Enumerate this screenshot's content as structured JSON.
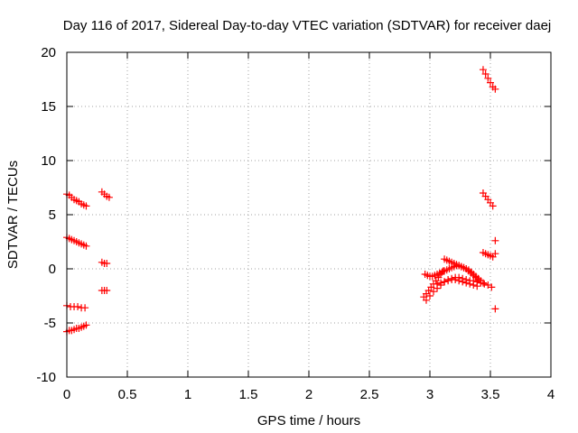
{
  "chart_data": {
    "type": "scatter",
    "title": "Day 116 of 2017, Sidereal Day-to-day VTEC variation (SDTVAR) for receiver daej",
    "xlabel": "GPS time / hours",
    "ylabel": "SDTVAR / TECUs",
    "xlim": [
      0,
      4
    ],
    "ylim": [
      -10,
      20
    ],
    "xticks": [
      0,
      0.5,
      1,
      1.5,
      2,
      2.5,
      3,
      3.5,
      4
    ],
    "xtick_labels": [
      "0",
      "0.5",
      "1",
      "1.5",
      "2",
      "2.5",
      "3",
      "3.5",
      "4"
    ],
    "yticks": [
      -10,
      -5,
      0,
      5,
      10,
      15,
      20
    ],
    "ytick_labels": [
      "-10",
      "-5",
      "0",
      "5",
      "10",
      "15",
      "20"
    ],
    "grid": true,
    "marker": "plus",
    "color": "#ff0000",
    "series": [
      {
        "x": [
          0.0,
          0.02,
          0.04,
          0.06,
          0.08,
          0.1,
          0.12,
          0.14,
          0.16,
          0.0,
          0.02,
          0.04,
          0.06,
          0.08,
          0.1,
          0.12,
          0.14,
          0.16,
          0.0,
          0.03,
          0.06,
          0.09,
          0.12,
          0.15,
          0.0,
          0.02,
          0.04,
          0.06,
          0.08,
          0.1,
          0.12,
          0.14,
          0.16,
          0.29,
          0.31,
          0.33,
          0.35,
          0.29,
          0.31,
          0.33,
          0.29,
          0.31,
          0.33,
          2.95,
          2.97,
          2.99,
          3.01,
          3.03,
          3.05,
          3.07,
          3.09,
          3.11,
          2.96,
          2.98,
          3.0,
          3.02,
          3.04,
          3.06,
          3.08,
          3.1,
          3.12,
          3.14,
          3.16,
          3.18,
          3.2,
          3.22,
          3.24,
          3.26,
          3.28,
          3.3,
          3.32,
          3.34,
          3.36,
          3.38,
          3.4,
          3.42,
          3.44,
          2.97,
          3.0,
          3.03,
          3.06,
          3.09,
          3.12,
          3.15,
          3.18,
          3.21,
          3.24,
          3.27,
          3.3,
          3.33,
          3.36,
          3.39,
          3.42,
          3.45,
          3.48,
          3.51,
          3.12,
          3.14,
          3.16,
          3.18,
          3.2,
          3.22,
          3.24,
          3.26,
          3.28,
          3.3,
          3.32,
          3.34,
          3.36,
          3.38,
          3.4,
          3.06,
          3.09,
          3.12,
          3.15,
          3.18,
          3.21,
          3.24,
          3.27,
          3.3,
          3.33,
          3.36,
          3.39,
          3.44,
          3.46,
          3.48,
          3.5,
          3.52,
          3.54,
          3.44,
          3.46,
          3.48,
          3.5,
          3.52,
          3.44,
          3.46,
          3.48,
          3.5,
          3.52,
          3.54,
          3.54,
          3.54
        ],
        "y": [
          6.9,
          6.8,
          6.6,
          6.4,
          6.3,
          6.2,
          6.0,
          5.9,
          5.8,
          2.9,
          2.8,
          2.7,
          2.6,
          2.5,
          2.4,
          2.3,
          2.2,
          2.1,
          -3.4,
          -3.5,
          -3.5,
          -3.5,
          -3.6,
          -3.6,
          -5.8,
          -5.7,
          -5.7,
          -5.6,
          -5.5,
          -5.5,
          -5.4,
          -5.3,
          -5.2,
          7.1,
          6.9,
          6.7,
          6.6,
          0.6,
          0.5,
          0.5,
          -2.0,
          -2.0,
          -2.0,
          -2.6,
          -2.3,
          -2.0,
          -1.7,
          -1.4,
          -1.1,
          -0.8,
          -0.5,
          -0.2,
          -0.5,
          -0.6,
          -0.7,
          -0.7,
          -0.6,
          -0.5,
          -0.4,
          -0.3,
          -0.2,
          -0.1,
          0.0,
          0.1,
          0.2,
          0.3,
          0.3,
          0.2,
          0.1,
          0.0,
          -0.1,
          -0.3,
          -0.5,
          -0.7,
          -0.9,
          -1.1,
          -1.3,
          -2.9,
          -2.5,
          -2.1,
          -1.8,
          -1.5,
          -1.2,
          -1.0,
          -0.9,
          -0.8,
          -0.8,
          -0.9,
          -1.0,
          -1.1,
          -1.1,
          -1.2,
          -1.3,
          -1.4,
          -1.5,
          -1.7,
          0.9,
          0.8,
          0.7,
          0.6,
          0.5,
          0.4,
          0.3,
          0.2,
          0.1,
          0.0,
          -0.2,
          -0.4,
          -0.6,
          -0.8,
          -1.0,
          -1.4,
          -1.3,
          -1.2,
          -1.1,
          -1.0,
          -1.0,
          -1.1,
          -1.2,
          -1.3,
          -1.4,
          -1.5,
          -1.6,
          18.4,
          18.0,
          17.6,
          17.2,
          16.8,
          16.6,
          7.0,
          6.7,
          6.4,
          6.1,
          5.8,
          1.5,
          1.4,
          1.3,
          1.2,
          1.1,
          1.4,
          2.6,
          -3.7
        ]
      }
    ]
  }
}
